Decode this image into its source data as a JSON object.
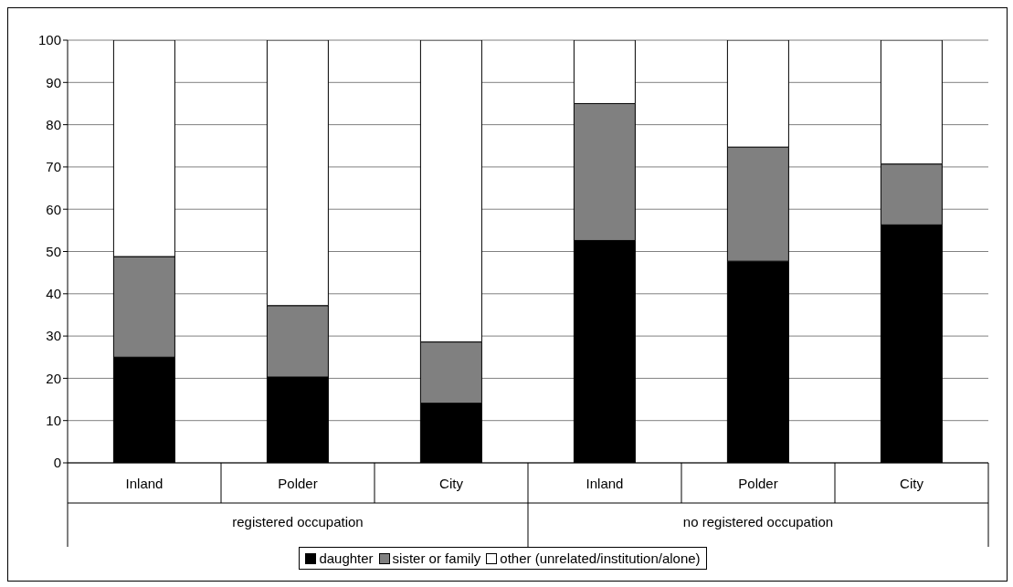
{
  "chart_data": {
    "type": "bar",
    "stacked": true,
    "categories": [
      "Inland",
      "Polder",
      "City",
      "Inland",
      "Polder",
      "City"
    ],
    "series": [
      {
        "name": "daughter",
        "color": "#000000",
        "values": [
          25.0,
          20.3,
          14.1,
          52.6,
          47.7,
          56.3
        ]
      },
      {
        "name": "sister or family",
        "color": "#808080",
        "values": [
          23.8,
          16.9,
          14.5,
          32.4,
          27.0,
          14.4
        ]
      },
      {
        "name": "other (unrelated/institution/alone)",
        "color": "#ffffff",
        "values": [
          51.2,
          62.8,
          71.4,
          15.0,
          25.3,
          29.3
        ]
      }
    ],
    "annotations": [
      "registered occupation",
      "no registered occupation"
    ],
    "ylim": [
      0,
      100
    ],
    "yticks": [
      0,
      10,
      20,
      30,
      40,
      50,
      60,
      70,
      80,
      90,
      100
    ],
    "grid": "y",
    "legend": "bottom"
  }
}
